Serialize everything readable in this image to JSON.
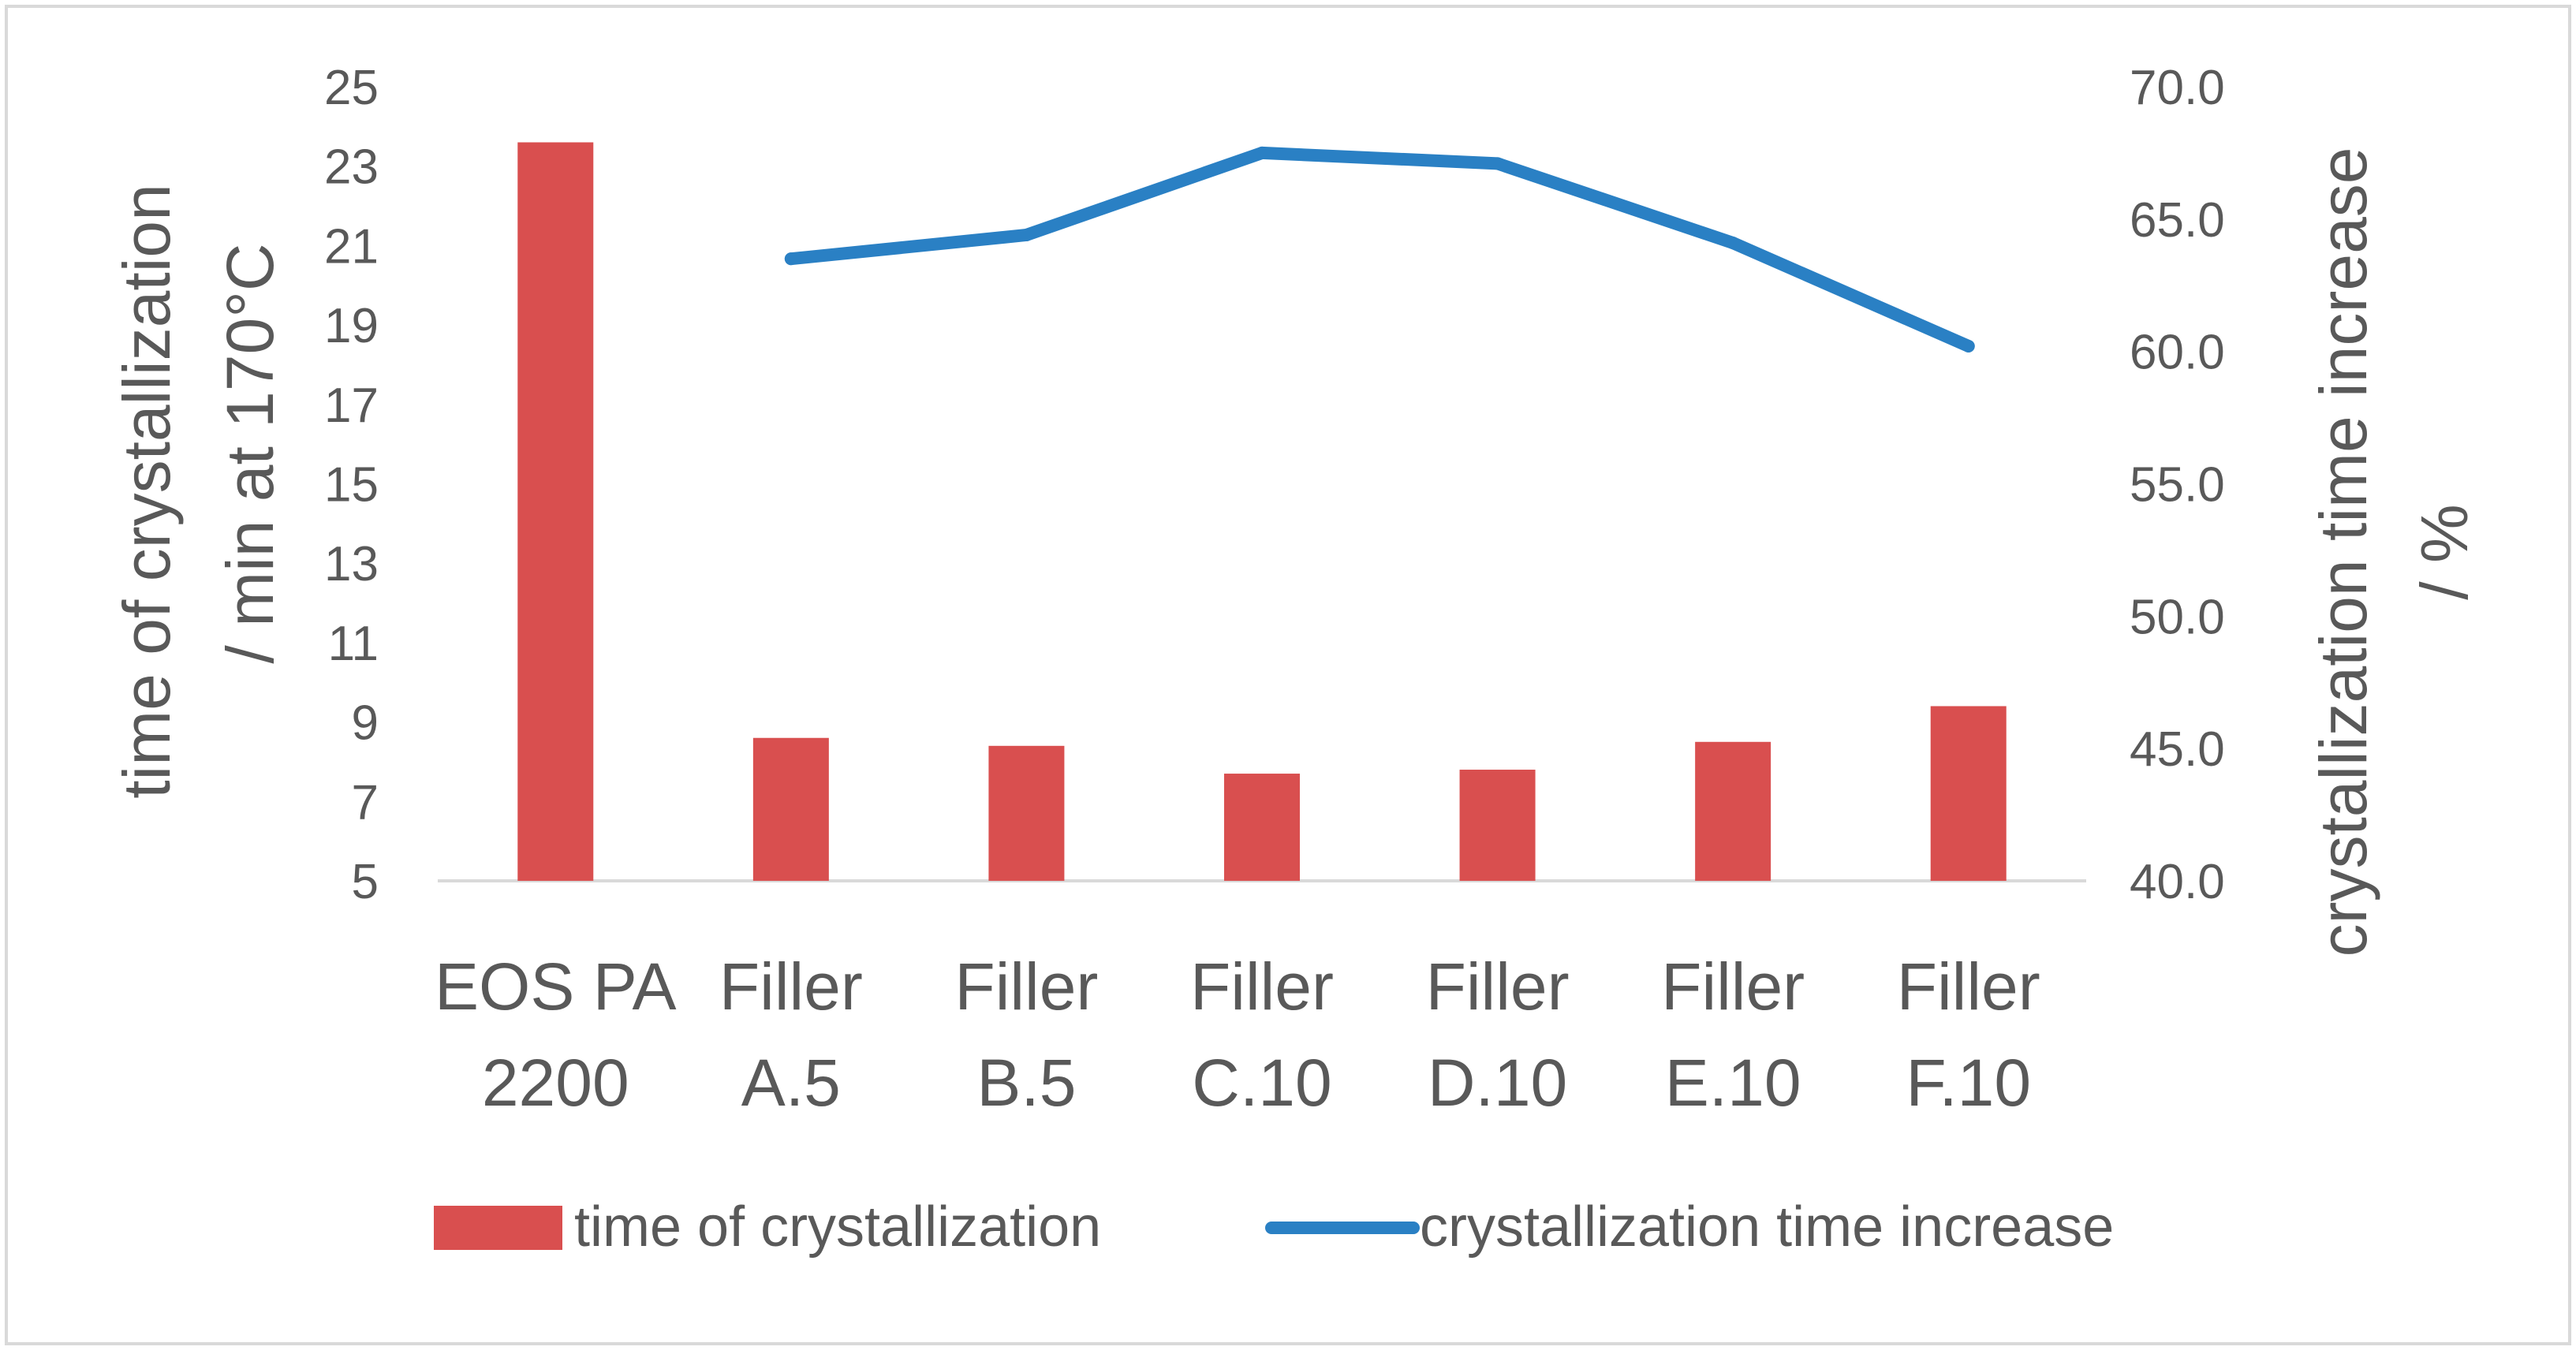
{
  "chart_data": {
    "type": "bar",
    "categories": [
      [
        "EOS PA",
        "2200"
      ],
      [
        "Filler",
        "A.5"
      ],
      [
        "Filler",
        "B.5"
      ],
      [
        "Filler",
        "C.10"
      ],
      [
        "Filler",
        "D.10"
      ],
      [
        "Filler",
        "E.10"
      ],
      [
        "Filler",
        "F.10"
      ]
    ],
    "series": [
      {
        "name": "time of crystallization",
        "type": "bar",
        "axis": "left",
        "color": "#d94f4f",
        "values": [
          23.6,
          8.6,
          8.4,
          7.7,
          7.8,
          8.5,
          9.4
        ]
      },
      {
        "name": "crystallization time increase",
        "type": "line",
        "axis": "right",
        "color": "#2a80c4",
        "values": [
          null,
          63.5,
          64.4,
          67.5,
          67.1,
          64.1,
          60.2
        ]
      }
    ],
    "y_left": {
      "title": [
        "time of crystallization",
        "/ min at 170°C"
      ],
      "ylim": [
        5,
        25
      ],
      "ticks": [
        "5",
        "7",
        "9",
        "11",
        "13",
        "15",
        "17",
        "19",
        "21",
        "23",
        "25"
      ]
    },
    "y_right": {
      "title": [
        "crystallization time increase",
        "/ %"
      ],
      "ylim": [
        40,
        70
      ],
      "ticks": [
        "40.0",
        "45.0",
        "50.0",
        "55.0",
        "60.0",
        "65.0",
        "70.0"
      ]
    },
    "grid": false,
    "legend": "bottom-center"
  }
}
